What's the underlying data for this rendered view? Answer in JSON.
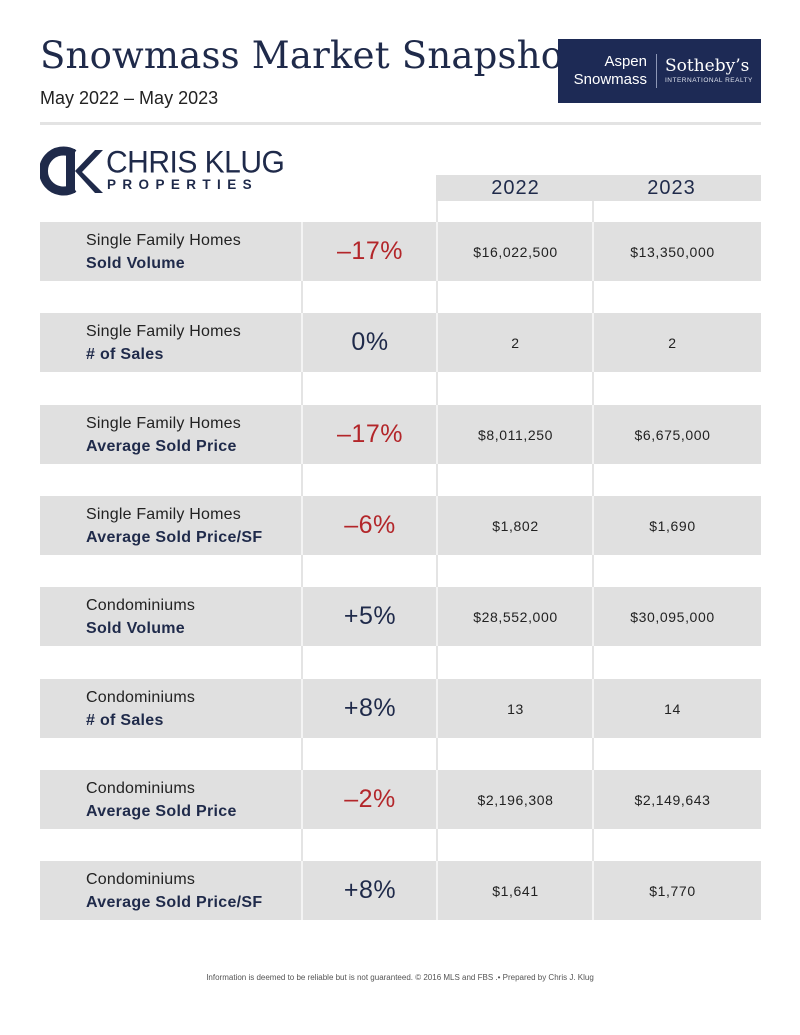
{
  "header": {
    "title": "Snowmass Market Snapshot",
    "date_range": "May 2022 – May 2023"
  },
  "brand": {
    "line1": "Aspen",
    "line2": "Snowmass",
    "name": "Sotheby’s",
    "sub": "INTERNATIONAL REALTY"
  },
  "logo": {
    "name": "CHRIS KLUG",
    "sub": "PROPERTIES"
  },
  "table": {
    "columns": [
      "2022",
      "2023"
    ],
    "rows": [
      {
        "category": "Single Family Homes",
        "metric": "Sold Volume",
        "change": "–17%",
        "direction": "negative",
        "v2022": "$16,022,500",
        "v2023": "$13,350,000"
      },
      {
        "category": "Single Family Homes",
        "metric": "# of Sales",
        "change": "0%",
        "direction": "neutral",
        "v2022": "2",
        "v2023": "2"
      },
      {
        "category": "Single Family Homes",
        "metric": "Average Sold Price",
        "change": "–17%",
        "direction": "negative",
        "v2022": "$8,011,250",
        "v2023": "$6,675,000"
      },
      {
        "category": "Single Family Homes",
        "metric": "Average Sold Price/SF",
        "change": "–6%",
        "direction": "negative",
        "v2022": "$1,802",
        "v2023": "$1,690"
      },
      {
        "category": "Condominiums",
        "metric": "Sold Volume",
        "change": "+5%",
        "direction": "positive",
        "v2022": "$28,552,000",
        "v2023": "$30,095,000"
      },
      {
        "category": "Condominiums",
        "metric": "# of Sales",
        "change": "+8%",
        "direction": "positive",
        "v2022": "13",
        "v2023": "14"
      },
      {
        "category": "Condominiums",
        "metric": "Average Sold Price",
        "change": "–2%",
        "direction": "negative",
        "v2022": "$2,196,308",
        "v2023": "$2,149,643"
      },
      {
        "category": "Condominiums",
        "metric": "Average Sold Price/SF",
        "change": "+8%",
        "direction": "positive",
        "v2022": "$1,641",
        "v2023": "$1,770"
      }
    ]
  },
  "footer": "Information is deemed to be reliable but is not guaranteed. © 2016 MLS and FBS .• Prepared by Chris J. Klug",
  "colors": {
    "navy": "#1f2a4a",
    "negative": "#b3262a",
    "row_bg": "#e0e0e0"
  }
}
